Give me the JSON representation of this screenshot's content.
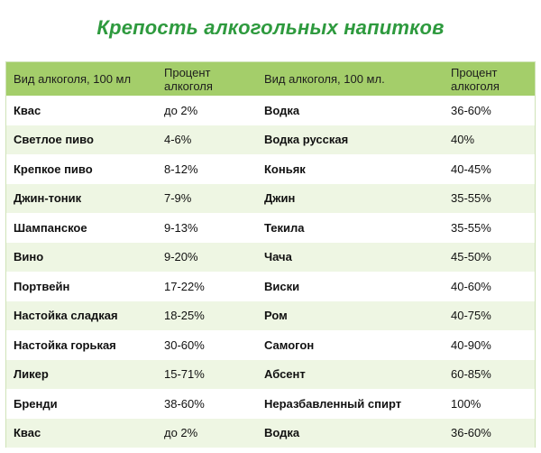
{
  "title": "Крепость алкогольных напитков",
  "table": {
    "headers": [
      "Вид алкоголя, 100 мл",
      "Процент алкоголя",
      "Вид алкоголя, 100 мл.",
      "Процент алкоголя"
    ],
    "rows": [
      [
        "Квас",
        "до 2%",
        "Водка",
        "36-60%"
      ],
      [
        "Светлое пиво",
        "4-6%",
        "Водка русская",
        "40%"
      ],
      [
        "Крепкое пиво",
        "8-12%",
        "Коньяк",
        "40-45%"
      ],
      [
        "Джин-тоник",
        "7-9%",
        "Джин",
        "35-55%"
      ],
      [
        "Шампанское",
        "9-13%",
        "Текила",
        "35-55%"
      ],
      [
        "Вино",
        "9-20%",
        "Чача",
        "45-50%"
      ],
      [
        "Портвейн",
        "17-22%",
        "Виски",
        "40-60%"
      ],
      [
        "Настойка сладкая",
        "18-25%",
        "Ром",
        "40-75%"
      ],
      [
        "Настойка горькая",
        "30-60%",
        "Самогон",
        "40-90%"
      ],
      [
        "Ликер",
        "15-71%",
        "Абсент",
        "60-85%"
      ],
      [
        "Бренди",
        "38-60%",
        "Неразбавленный спирт",
        "100%"
      ],
      [
        "Квас",
        "до 2%",
        "Водка",
        "36-60%"
      ]
    ]
  },
  "colors": {
    "title": "#2e9a3e",
    "header_bg": "#a4ce6a",
    "alt_row_bg": "#eef6e3"
  }
}
